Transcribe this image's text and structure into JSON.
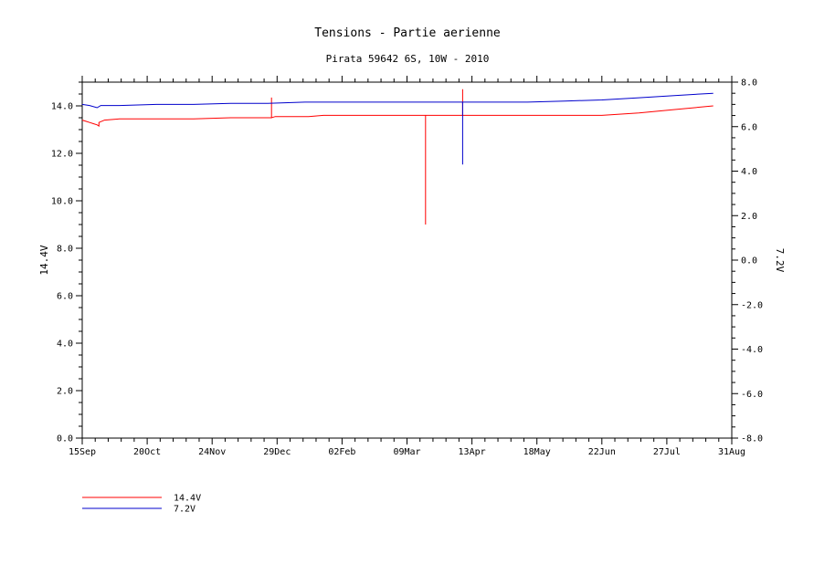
{
  "chart_data": {
    "type": "line",
    "title": "Tensions - Partie aerienne",
    "subtitle": "Pirata 59642 6S, 10W - 2010",
    "ylabel_left": "14.4V",
    "ylabel_right": "7.2V",
    "x_tick_labels": [
      "15Sep",
      "20Oct",
      "24Nov",
      "29Dec",
      "02Feb",
      "09Mar",
      "13Apr",
      "18May",
      "22Jun",
      "27Jul",
      "31Aug"
    ],
    "xlim_days": [
      0,
      350
    ],
    "ylim_left": [
      0.0,
      15.0
    ],
    "ylim_right": [
      -8.0,
      8.0
    ],
    "y_ticks_left": [
      "0.0",
      "2.0",
      "4.0",
      "6.0",
      "8.0",
      "10.0",
      "12.0",
      "14.0"
    ],
    "y_ticks_right": [
      "-8.0",
      "-6.0",
      "-4.0",
      "-2.0",
      "0.0",
      "2.0",
      "4.0",
      "6.0",
      "8.0"
    ],
    "grid": false,
    "legend_placement": "bottom-left",
    "series": [
      {
        "name": "14.4V",
        "axis": "left",
        "color": "#ff0000",
        "x": [
          0,
          2,
          4,
          6,
          8,
          9,
          9,
          12,
          20,
          40,
          60,
          80,
          100,
          102,
          102,
          102,
          104,
          110,
          120,
          122,
          130,
          140,
          150,
          160,
          170,
          180,
          185,
          185,
          185,
          186,
          190,
          200,
          205,
          205,
          205,
          206,
          210,
          220,
          230,
          240,
          250,
          260,
          270,
          280,
          300,
          320,
          340
        ],
        "y": [
          13.4,
          13.35,
          13.3,
          13.25,
          13.2,
          13.15,
          13.3,
          13.4,
          13.45,
          13.45,
          13.45,
          13.5,
          13.5,
          13.5,
          14.35,
          13.5,
          13.55,
          13.55,
          13.55,
          13.55,
          13.6,
          13.6,
          13.6,
          13.6,
          13.6,
          13.6,
          13.6,
          9.0,
          13.6,
          13.6,
          13.6,
          13.6,
          13.6,
          14.7,
          13.6,
          13.6,
          13.6,
          13.6,
          13.6,
          13.6,
          13.6,
          13.6,
          13.6,
          13.6,
          13.7,
          13.85,
          14.0
        ]
      },
      {
        "name": "7.2V",
        "axis": "right",
        "color": "#0000cc",
        "x": [
          0,
          4,
          8,
          10,
          12,
          20,
          40,
          60,
          80,
          100,
          120,
          140,
          160,
          180,
          185,
          185,
          185,
          190,
          200,
          205,
          205,
          205,
          210,
          220,
          240,
          260,
          280,
          300,
          320,
          340
        ],
        "y": [
          7.0,
          6.95,
          6.85,
          6.95,
          6.95,
          6.95,
          7.0,
          7.0,
          7.05,
          7.05,
          7.1,
          7.1,
          7.1,
          7.1,
          7.1,
          7.1,
          7.1,
          7.1,
          7.1,
          7.1,
          4.3,
          7.1,
          7.1,
          7.1,
          7.1,
          7.15,
          7.2,
          7.3,
          7.4,
          7.5
        ]
      }
    ]
  }
}
